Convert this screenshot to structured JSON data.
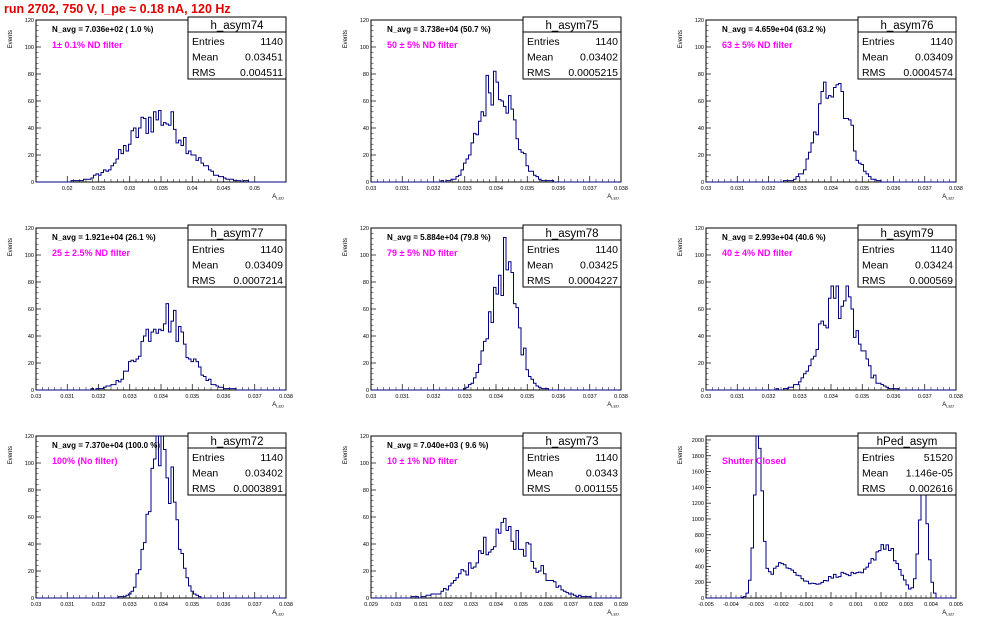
{
  "page": {
    "title": "run 2702,   750 V, I_pe ≈ 0.18 nA, 120 Hz"
  },
  "chart_data": [
    {
      "type": "histogram",
      "name": "h_asym74",
      "navg": "N_avg = 7.036e+02 ( 1.0 %)",
      "filter": "1± 0.1% ND filter",
      "stats": {
        "entries": "1140",
        "mean": "0.03451",
        "rms": "0.004511"
      },
      "xlabel": "A_LED",
      "ylabel": "Events",
      "xlim": [
        0.015,
        0.055
      ],
      "ylim": [
        0,
        120
      ],
      "xticks": [
        0.02,
        0.025,
        0.03,
        0.035,
        0.04,
        0.045,
        0.05
      ],
      "xtick_labels": [
        "0.02",
        "0.025",
        "0.03",
        "0.035",
        "0.04",
        "0.045",
        "0.05"
      ],
      "yticks": [
        0,
        20,
        40,
        60,
        80,
        100,
        120
      ],
      "peak": 48,
      "sigma": 0.0045,
      "line_color": "#000080"
    },
    {
      "type": "histogram",
      "name": "h_asym75",
      "navg": "N_avg = 3.738e+04 (50.7 %)",
      "filter": "50 ± 5% ND filter",
      "stats": {
        "entries": "1140",
        "mean": "0.03402",
        "rms": "0.0005215"
      },
      "xlabel": "A_LED",
      "ylabel": "Events",
      "xlim": [
        0.03,
        0.038
      ],
      "ylim": [
        0,
        120
      ],
      "xticks": [
        0.03,
        0.031,
        0.032,
        0.033,
        0.034,
        0.035,
        0.036,
        0.037,
        0.038
      ],
      "xtick_labels": [
        "0.03",
        "0.031",
        "0.032",
        "0.033",
        "0.034",
        "0.035",
        "0.036",
        "0.037",
        "0.038"
      ],
      "yticks": [
        0,
        20,
        40,
        60,
        80,
        100,
        120
      ],
      "peak": 78,
      "sigma": 0.00052,
      "line_color": "#000080"
    },
    {
      "type": "histogram",
      "name": "h_asym76",
      "navg": "N_avg = 4.659e+04 (63.2 %)",
      "filter": "63 ± 5% ND filter",
      "stats": {
        "entries": "1140",
        "mean": "0.03409",
        "rms": "0.0004574"
      },
      "xlabel": "A_LED",
      "ylabel": "Events",
      "xlim": [
        0.03,
        0.038
      ],
      "ylim": [
        0,
        120
      ],
      "xticks": [
        0.03,
        0.031,
        0.032,
        0.033,
        0.034,
        0.035,
        0.036,
        0.037,
        0.038
      ],
      "xtick_labels": [
        "0.03",
        "0.031",
        "0.032",
        "0.033",
        "0.034",
        "0.035",
        "0.036",
        "0.037",
        "0.038"
      ],
      "yticks": [
        0,
        20,
        40,
        60,
        80,
        100,
        120
      ],
      "peak": 80,
      "sigma": 0.00046,
      "line_color": "#000080"
    },
    {
      "type": "histogram",
      "name": "h_asym77",
      "navg": "N_avg = 1.921e+04 (26.1 %)",
      "filter": "25 ± 2.5% ND filter",
      "stats": {
        "entries": "1140",
        "mean": "0.03409",
        "rms": "0.0007214"
      },
      "xlabel": "A_LED",
      "ylabel": "Events",
      "xlim": [
        0.03,
        0.038
      ],
      "ylim": [
        0,
        120
      ],
      "xticks": [
        0.03,
        0.031,
        0.032,
        0.033,
        0.034,
        0.035,
        0.036,
        0.037,
        0.038
      ],
      "xtick_labels": [
        "0.03",
        "0.031",
        "0.032",
        "0.033",
        "0.034",
        "0.035",
        "0.036",
        "0.037",
        "0.038"
      ],
      "yticks": [
        0,
        20,
        40,
        60,
        80,
        100,
        120
      ],
      "peak": 55,
      "sigma": 0.00072,
      "line_color": "#000080"
    },
    {
      "type": "histogram",
      "name": "h_asym78",
      "navg": "N_avg = 5.884e+04 (79.8 %)",
      "filter": "79 ± 5% ND filter",
      "stats": {
        "entries": "1140",
        "mean": "0.03425",
        "rms": "0.0004227"
      },
      "xlabel": "A_LED",
      "ylabel": "Events",
      "xlim": [
        0.03,
        0.038
      ],
      "ylim": [
        0,
        120
      ],
      "xticks": [
        0.03,
        0.031,
        0.032,
        0.033,
        0.034,
        0.035,
        0.036,
        0.037,
        0.038
      ],
      "xtick_labels": [
        "0.03",
        "0.031",
        "0.032",
        "0.033",
        "0.034",
        "0.035",
        "0.036",
        "0.037",
        "0.038"
      ],
      "yticks": [
        0,
        20,
        40,
        60,
        80,
        100,
        120
      ],
      "peak": 92,
      "sigma": 0.00042,
      "line_color": "#000080"
    },
    {
      "type": "histogram",
      "name": "h_asym79",
      "navg": "N_avg = 2.993e+04 (40.6 %)",
      "filter": "40 ± 4% ND filter",
      "stats": {
        "entries": "1140",
        "mean": "0.03424",
        "rms": "0.000569"
      },
      "xlabel": "A_LED",
      "ylabel": "Events",
      "xlim": [
        0.03,
        0.038
      ],
      "ylim": [
        0,
        120
      ],
      "xticks": [
        0.03,
        0.031,
        0.032,
        0.033,
        0.034,
        0.035,
        0.036,
        0.037,
        0.038
      ],
      "xtick_labels": [
        "0.03",
        "0.031",
        "0.032",
        "0.033",
        "0.034",
        "0.035",
        "0.036",
        "0.037",
        "0.038"
      ],
      "yticks": [
        0,
        20,
        40,
        60,
        80,
        100,
        120
      ],
      "peak": 70,
      "sigma": 0.00057,
      "line_color": "#000080"
    },
    {
      "type": "histogram",
      "name": "h_asym72",
      "navg": "N_avg = 7.370e+04 (100.0 %)",
      "filter": "100% (No filter)",
      "stats": {
        "entries": "1140",
        "mean": "0.03402",
        "rms": "0.0003891"
      },
      "xlabel": "A_LED",
      "ylabel": "Events",
      "xlim": [
        0.03,
        0.038
      ],
      "ylim": [
        0,
        120
      ],
      "xticks": [
        0.03,
        0.031,
        0.032,
        0.033,
        0.034,
        0.035,
        0.036,
        0.037,
        0.038
      ],
      "xtick_labels": [
        "0.03",
        "0.031",
        "0.032",
        "0.033",
        "0.034",
        "0.035",
        "0.036",
        "0.037",
        "0.038"
      ],
      "yticks": [
        0,
        20,
        40,
        60,
        80,
        100,
        120
      ],
      "peak": 115,
      "sigma": 0.00039,
      "line_color": "#000080"
    },
    {
      "type": "histogram",
      "name": "h_asym73",
      "navg": "N_avg = 7.040e+03 ( 9.6 %)",
      "filter": "10 ± 1% ND filter",
      "stats": {
        "entries": "1140",
        "mean": "0.0343",
        "rms": "0.001155"
      },
      "xlabel": "A_LED",
      "ylabel": "Events",
      "xlim": [
        0.029,
        0.039
      ],
      "ylim": [
        0,
        120
      ],
      "xticks": [
        0.029,
        0.03,
        0.031,
        0.032,
        0.033,
        0.034,
        0.035,
        0.036,
        0.037,
        0.038,
        0.039
      ],
      "xtick_labels": [
        "0.029",
        "0.03",
        "0.031",
        "0.032",
        "0.033",
        "0.034",
        "0.035",
        "0.036",
        "0.037",
        "0.038",
        "0.039"
      ],
      "yticks": [
        0,
        20,
        40,
        60,
        80,
        100,
        120
      ],
      "peak": 50,
      "sigma": 0.00115,
      "line_color": "#000080"
    },
    {
      "type": "histogram",
      "name": "hPed_asym",
      "navg": "",
      "filter": "Shutter Closed",
      "stats": {
        "entries": "51520",
        "mean": "1.146e-05",
        "rms": "0.002616"
      },
      "xlabel": "A_LED",
      "ylabel": "Events",
      "xlim": [
        -0.005,
        0.005
      ],
      "ylim": [
        0,
        2050
      ],
      "xticks": [
        -0.005,
        -0.004,
        -0.003,
        -0.002,
        -0.001,
        0,
        0.001,
        0.002,
        0.003,
        0.004,
        0.005
      ],
      "xtick_labels": [
        "-0.005",
        "-0.004",
        "-0.003",
        "-0.002",
        "-0.001",
        "0",
        "0.001",
        "0.002",
        "0.003",
        "0.004",
        "0.005"
      ],
      "yticks": [
        0,
        200,
        400,
        600,
        800,
        1000,
        1200,
        1400,
        1600,
        1800,
        2000
      ],
      "peak": 2000,
      "sigma": 0.0002,
      "line_color": "#000080",
      "shape": "pedestal"
    }
  ]
}
